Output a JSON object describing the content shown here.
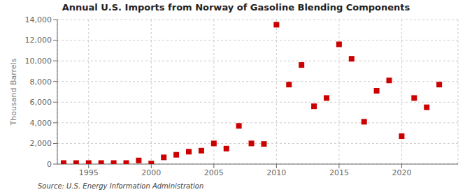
{
  "chart_data": {
    "type": "scatter",
    "title": "Annual U.S. Imports from Norway of Gasoline Blending Components",
    "ylabel": "Thousand Barrels",
    "source": "Source: U.S. Energy Information Administration",
    "color": "#cc0000",
    "marker": "square",
    "grid": true,
    "x": [
      1993,
      1994,
      1995,
      1996,
      1997,
      1998,
      1999,
      2000,
      2001,
      2002,
      2003,
      2004,
      2005,
      2006,
      2007,
      2008,
      2009,
      2010,
      2011,
      2012,
      2013,
      2014,
      2015,
      2016,
      2017,
      2018,
      2019,
      2020,
      2021,
      2022,
      2023
    ],
    "values": [
      100,
      100,
      100,
      100,
      100,
      100,
      350,
      50,
      650,
      900,
      1200,
      1300,
      2000,
      1500,
      3700,
      2000,
      1950,
      13500,
      7700,
      9600,
      5600,
      6400,
      11600,
      10200,
      4100,
      7100,
      8100,
      2700,
      6400,
      5500,
      7700
    ],
    "xlim": [
      1992.5,
      2024.5
    ],
    "xticks": [
      1995,
      2000,
      2005,
      2010,
      2015,
      2020
    ],
    "ylim": [
      0,
      14000
    ],
    "yticks": [
      0,
      {
        "value": 2000,
        "label": "2,000"
      },
      {
        "value": 4000,
        "label": "4,000"
      },
      {
        "value": 6000,
        "label": "6,000"
      },
      {
        "value": 8000,
        "label": "8,000"
      },
      {
        "value": 10000,
        "label": "10,000"
      },
      {
        "value": 12000,
        "label": "12,000"
      },
      {
        "value": 14000,
        "label": "14,000"
      }
    ]
  }
}
